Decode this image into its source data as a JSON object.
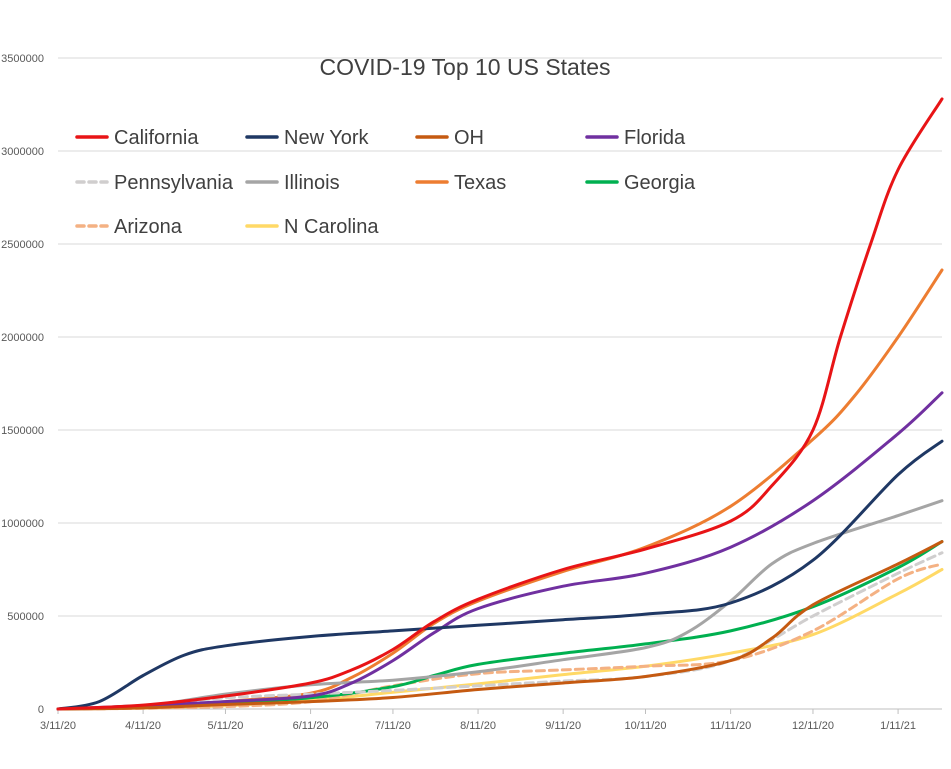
{
  "chart_data": {
    "type": "line",
    "title": "COVID-19 Top 10 US States",
    "xlabel": "",
    "ylabel": "",
    "x_ticks": [
      "3/11/20",
      "4/11/20",
      "5/11/20",
      "6/11/20",
      "7/11/20",
      "8/11/20",
      "9/11/20",
      "10/11/20",
      "11/11/20",
      "12/11/20",
      "1/11/21"
    ],
    "x_range": [
      "3/11/20",
      "1/27/21"
    ],
    "ylim": [
      0,
      3500000
    ],
    "y_ticks": [
      0,
      500000,
      1000000,
      1500000,
      2000000,
      2500000,
      3000000,
      3500000
    ],
    "grid": true,
    "legend_position": "top-left",
    "series": [
      {
        "name": "California",
        "color": "#e81416",
        "dashed": false,
        "x": [
          "3/11/20",
          "4/11/20",
          "5/11/20",
          "6/11/20",
          "6/26/20",
          "7/11/20",
          "7/26/20",
          "8/11/20",
          "9/11/20",
          "10/11/20",
          "11/11/20",
          "11/26/20",
          "12/11/20",
          "12/21/20",
          "1/1/21",
          "1/11/21",
          "1/27/21"
        ],
        "y": [
          0,
          21000,
          70000,
          140000,
          210000,
          320000,
          470000,
          590000,
          750000,
          860000,
          1010000,
          1200000,
          1500000,
          2000000,
          2500000,
          2900000,
          3280000
        ]
      },
      {
        "name": "New York",
        "color": "#1f3864",
        "dashed": false,
        "x": [
          "3/11/20",
          "3/26/20",
          "4/11/20",
          "4/26/20",
          "5/11/20",
          "6/11/20",
          "7/11/20",
          "8/11/20",
          "9/11/20",
          "10/11/20",
          "11/11/20",
          "12/11/20",
          "1/11/21",
          "1/27/21"
        ],
        "y": [
          0,
          40000,
          180000,
          290000,
          340000,
          390000,
          420000,
          450000,
          480000,
          510000,
          570000,
          800000,
          1260000,
          1440000
        ]
      },
      {
        "name": "OH",
        "color": "#c55a11",
        "dashed": false,
        "x": [
          "3/11/20",
          "4/11/20",
          "5/11/20",
          "6/11/20",
          "7/11/20",
          "8/11/20",
          "9/11/20",
          "10/11/20",
          "11/11/20",
          "11/26/20",
          "12/11/20",
          "1/11/21",
          "1/27/21"
        ],
        "y": [
          0,
          6000,
          24000,
          40000,
          62000,
          105000,
          140000,
          175000,
          260000,
          380000,
          560000,
          780000,
          900000
        ]
      },
      {
        "name": "Florida",
        "color": "#7030a0",
        "dashed": false,
        "x": [
          "3/11/20",
          "4/11/20",
          "5/11/20",
          "6/11/20",
          "6/26/20",
          "7/11/20",
          "7/26/20",
          "8/11/20",
          "9/11/20",
          "10/11/20",
          "11/11/20",
          "12/11/20",
          "1/11/21",
          "1/27/21"
        ],
        "y": [
          0,
          18000,
          40000,
          70000,
          140000,
          260000,
          410000,
          540000,
          660000,
          730000,
          870000,
          1120000,
          1480000,
          1700000
        ]
      },
      {
        "name": "Pennsylvania",
        "color": "#d0cece",
        "dashed": true,
        "x": [
          "3/11/20",
          "4/11/20",
          "5/11/20",
          "6/11/20",
          "7/11/20",
          "8/11/20",
          "9/11/20",
          "10/11/20",
          "11/11/20",
          "12/11/20",
          "1/11/21",
          "1/27/21"
        ],
        "y": [
          0,
          20000,
          60000,
          80000,
          100000,
          125000,
          150000,
          175000,
          260000,
          500000,
          730000,
          840000
        ]
      },
      {
        "name": "Illinois",
        "color": "#a5a5a5",
        "dashed": false,
        "x": [
          "3/11/20",
          "4/11/20",
          "5/11/20",
          "6/11/20",
          "7/11/20",
          "8/11/20",
          "9/11/20",
          "10/11/20",
          "10/26/20",
          "11/11/20",
          "11/26/20",
          "12/11/20",
          "1/11/21",
          "1/27/21"
        ],
        "y": [
          0,
          15000,
          80000,
          130000,
          155000,
          200000,
          265000,
          330000,
          410000,
          580000,
          780000,
          890000,
          1040000,
          1120000
        ]
      },
      {
        "name": "Texas",
        "color": "#ed7d31",
        "dashed": false,
        "x": [
          "3/11/20",
          "4/11/20",
          "5/11/20",
          "6/11/20",
          "6/26/20",
          "7/11/20",
          "7/26/20",
          "8/11/20",
          "9/11/20",
          "10/11/20",
          "11/11/20",
          "12/11/20",
          "12/26/20",
          "1/11/21",
          "1/27/21"
        ],
        "y": [
          0,
          12000,
          40000,
          85000,
          170000,
          300000,
          460000,
          580000,
          740000,
          870000,
          1090000,
          1450000,
          1680000,
          2000000,
          2360000
        ]
      },
      {
        "name": "Georgia",
        "color": "#00b050",
        "dashed": false,
        "x": [
          "3/11/20",
          "4/11/20",
          "5/11/20",
          "6/11/20",
          "7/11/20",
          "7/26/20",
          "8/11/20",
          "9/11/20",
          "10/11/20",
          "11/11/20",
          "12/11/20",
          "1/11/21",
          "1/27/21"
        ],
        "y": [
          0,
          12000,
          35000,
          60000,
          120000,
          180000,
          240000,
          300000,
          350000,
          420000,
          550000,
          760000,
          900000
        ]
      },
      {
        "name": "Arizona",
        "color": "#f4b183",
        "dashed": true,
        "x": [
          "3/11/20",
          "4/11/20",
          "5/11/20",
          "6/11/20",
          "7/11/20",
          "8/11/20",
          "9/11/20",
          "10/11/20",
          "11/11/20",
          "12/11/20",
          "1/11/21",
          "1/27/21"
        ],
        "y": [
          0,
          4000,
          13000,
          40000,
          125000,
          190000,
          210000,
          230000,
          260000,
          420000,
          700000,
          780000
        ]
      },
      {
        "name": "N Carolina",
        "color": "#ffd966",
        "dashed": false,
        "x": [
          "3/11/20",
          "4/11/20",
          "5/11/20",
          "6/11/20",
          "7/11/20",
          "8/11/20",
          "9/11/20",
          "10/11/20",
          "11/11/20",
          "12/11/20",
          "1/11/21",
          "1/27/21"
        ],
        "y": [
          0,
          5000,
          18000,
          45000,
          90000,
          135000,
          185000,
          230000,
          300000,
          400000,
          620000,
          750000
        ]
      }
    ]
  }
}
